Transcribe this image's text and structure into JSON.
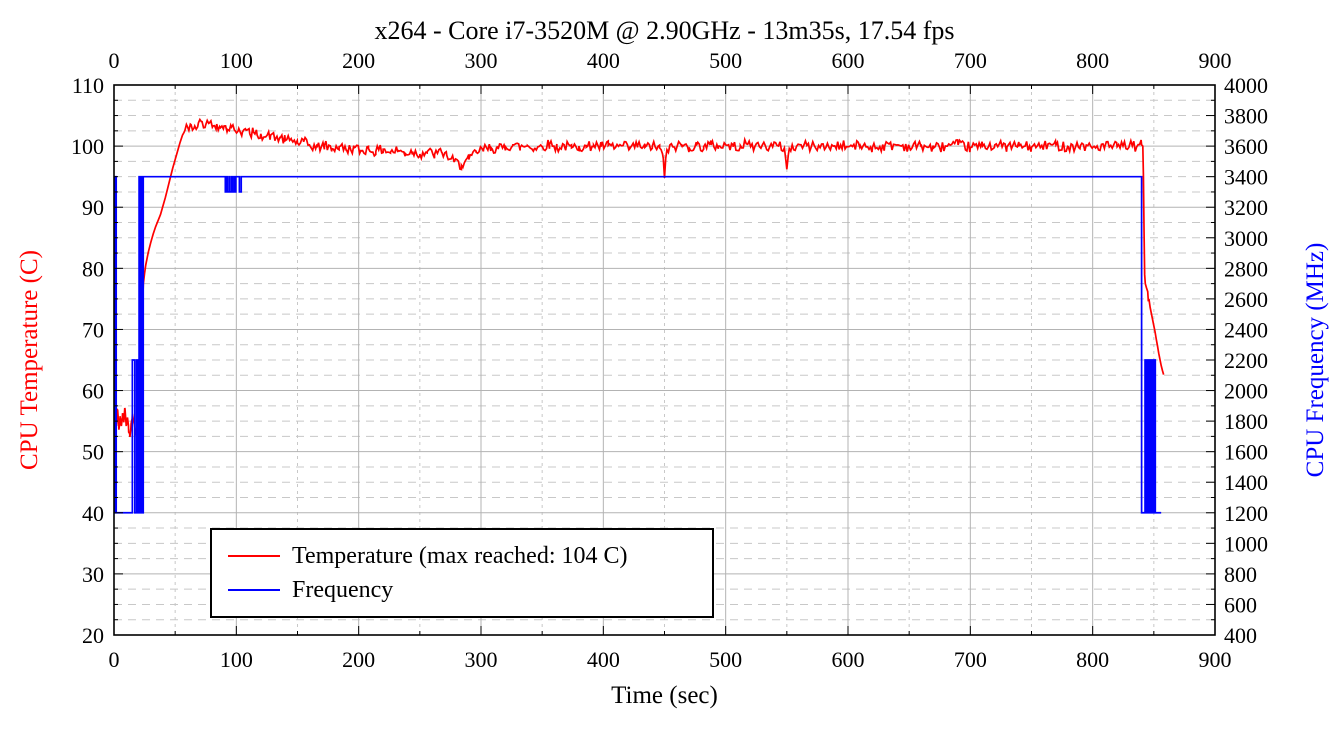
{
  "page": {
    "background": "#ffffff"
  },
  "chart_data": {
    "type": "line",
    "title": "x264 - Core i7-3520M @ 2.90GHz - 13m35s, 17.54 fps",
    "xlabel": "Time (sec)",
    "grid": {
      "major_color": "#b3b3b3",
      "minor_color": "#c8c8c8",
      "minor_dashed": true,
      "legend_position": "bottom-left-inside"
    },
    "x_axis": {
      "min": 0,
      "max": 900,
      "major_tick": 100,
      "minor_tick": 50,
      "mirrored_top": true,
      "tick_labels": [
        0,
        100,
        200,
        300,
        400,
        500,
        600,
        700,
        800,
        900
      ]
    },
    "y_left": {
      "label": "CPU Temperature (C)",
      "color": "#ff0000",
      "min": 20,
      "max": 110,
      "major_tick": 10,
      "minor_tick": 2.5,
      "tick_labels": [
        20,
        30,
        40,
        50,
        60,
        70,
        80,
        90,
        100,
        110
      ]
    },
    "y_right": {
      "label": "CPU Frequency (MHz)",
      "color": "#0000ff",
      "min": 400,
      "max": 4000,
      "label_tick": 200,
      "minor_tick": 100,
      "tick_labels": [
        400,
        600,
        800,
        1000,
        1200,
        1400,
        1600,
        1800,
        2000,
        2200,
        2400,
        2600,
        2800,
        3000,
        3200,
        3400,
        3600,
        3800,
        4000
      ]
    },
    "legend": {
      "entries": [
        {
          "label": "Temperature (max reached: 104 C)",
          "color": "#ff0000",
          "series": "temperature"
        },
        {
          "label": "Frequency",
          "color": "#0000ff",
          "series": "frequency"
        }
      ]
    },
    "series": [
      {
        "name": "temperature",
        "axis": "left",
        "color": "#ff0000",
        "max_reached": 104,
        "jitter": [
          {
            "from": 0,
            "to": 19.5,
            "amplitude": 0.8,
            "step": 0.8
          },
          {
            "from": 56,
            "to": 840,
            "amplitude": 0.85,
            "step": 1.2
          }
        ],
        "points": [
          [
            0,
            55.5
          ],
          [
            1,
            56.5
          ],
          [
            2,
            54.2
          ],
          [
            3,
            56.8
          ],
          [
            4,
            53.6
          ],
          [
            5,
            55.8
          ],
          [
            6,
            54.2
          ],
          [
            7,
            56.3
          ],
          [
            8,
            54.8
          ],
          [
            9,
            57
          ],
          [
            10,
            54.2
          ],
          [
            11,
            55.6
          ],
          [
            12,
            53.2
          ],
          [
            13,
            52.4
          ],
          [
            14,
            54.6
          ],
          [
            15,
            56.2
          ],
          [
            16,
            55
          ],
          [
            17,
            54
          ],
          [
            18,
            52.8
          ],
          [
            19,
            53.6
          ],
          [
            20,
            54.5
          ],
          [
            21,
            58.5
          ],
          [
            22,
            65
          ],
          [
            23,
            72
          ],
          [
            24,
            77.5
          ],
          [
            25,
            79.2
          ],
          [
            26,
            80.6
          ],
          [
            27,
            81.6
          ],
          [
            28,
            82.6
          ],
          [
            30,
            84.2
          ],
          [
            32,
            85.6
          ],
          [
            34,
            86.8
          ],
          [
            36,
            87.8
          ],
          [
            38,
            88.8
          ],
          [
            40,
            90.2
          ],
          [
            42,
            91.6
          ],
          [
            44,
            93.2
          ],
          [
            46,
            94.8
          ],
          [
            48,
            96.4
          ],
          [
            50,
            97.8
          ],
          [
            52,
            99.2
          ],
          [
            54,
            100.6
          ],
          [
            56,
            101.8
          ],
          [
            58,
            102.6
          ],
          [
            60,
            103.2
          ],
          [
            63,
            103.5
          ],
          [
            66,
            103.3
          ],
          [
            69,
            103.8
          ],
          [
            72,
            104
          ],
          [
            75,
            103.5
          ],
          [
            78,
            103.8
          ],
          [
            81,
            103.3
          ],
          [
            84,
            103.6
          ],
          [
            87,
            103
          ],
          [
            90,
            103.3
          ],
          [
            93,
            102.7
          ],
          [
            96,
            103.1
          ],
          [
            99,
            102.5
          ],
          [
            102,
            102.9
          ],
          [
            105,
            102.3
          ],
          [
            108,
            102.6
          ],
          [
            111,
            102
          ],
          [
            114,
            102.3
          ],
          [
            117,
            101.8
          ],
          [
            120,
            102
          ],
          [
            124,
            101.5
          ],
          [
            128,
            101.8
          ],
          [
            132,
            101.2
          ],
          [
            136,
            101.4
          ],
          [
            140,
            100.9
          ],
          [
            145,
            101.1
          ],
          [
            150,
            100.5
          ],
          [
            155,
            100.7
          ],
          [
            160,
            100.1
          ],
          [
            166,
            99.8
          ],
          [
            172,
            100.1
          ],
          [
            178,
            99.6
          ],
          [
            184,
            99.9
          ],
          [
            190,
            99.4
          ],
          [
            196,
            99.7
          ],
          [
            202,
            99.2
          ],
          [
            208,
            99.6
          ],
          [
            214,
            99.1
          ],
          [
            220,
            99.5
          ],
          [
            226,
            99
          ],
          [
            232,
            99.3
          ],
          [
            238,
            98.8
          ],
          [
            244,
            99.1
          ],
          [
            250,
            98.7
          ],
          [
            256,
            99.1
          ],
          [
            262,
            98.6
          ],
          [
            268,
            99
          ],
          [
            272,
            98.5
          ],
          [
            278,
            97.4
          ],
          [
            284,
            96.9
          ],
          [
            290,
            97.8
          ],
          [
            296,
            99
          ],
          [
            302,
            99.4
          ],
          [
            308,
            99.8
          ],
          [
            314,
            99.5
          ],
          [
            320,
            99.9
          ],
          [
            326,
            100.2
          ],
          [
            332,
            99.8
          ],
          [
            338,
            100.1
          ],
          [
            344,
            99.7
          ],
          [
            350,
            100
          ],
          [
            356,
            100.3
          ],
          [
            362,
            99.8
          ],
          [
            368,
            100.1
          ],
          [
            374,
            99.7
          ],
          [
            380,
            100
          ],
          [
            386,
            99.8
          ],
          [
            392,
            100.2
          ],
          [
            398,
            99.9
          ],
          [
            404,
            100.1
          ],
          [
            410,
            99.8
          ],
          [
            416,
            100
          ],
          [
            422,
            99.7
          ],
          [
            428,
            100.1
          ],
          [
            434,
            99.8
          ],
          [
            440,
            100
          ],
          [
            446,
            99.7
          ],
          [
            449,
            98
          ],
          [
            450,
            94.8
          ],
          [
            451,
            98
          ],
          [
            452,
            99.4
          ],
          [
            458,
            99.9
          ],
          [
            464,
            100.2
          ],
          [
            470,
            99.8
          ],
          [
            476,
            100.1
          ],
          [
            482,
            99.9
          ],
          [
            488,
            100.2
          ],
          [
            494,
            100
          ],
          [
            500,
            100.2
          ],
          [
            506,
            99.9
          ],
          [
            512,
            100.1
          ],
          [
            518,
            100.3
          ],
          [
            524,
            100
          ],
          [
            530,
            100.2
          ],
          [
            536,
            99.9
          ],
          [
            542,
            100.1
          ],
          [
            548,
            99.7
          ],
          [
            550,
            96.2
          ],
          [
            552,
            99.6
          ],
          [
            558,
            100
          ],
          [
            564,
            100.2
          ],
          [
            570,
            99.9
          ],
          [
            576,
            100.1
          ],
          [
            582,
            99.8
          ],
          [
            588,
            100
          ],
          [
            594,
            100.2
          ],
          [
            600,
            99.9
          ],
          [
            610,
            100.1
          ],
          [
            620,
            99.8
          ],
          [
            630,
            100
          ],
          [
            640,
            100.2
          ],
          [
            650,
            99.9
          ],
          [
            660,
            100.1
          ],
          [
            670,
            99.7
          ],
          [
            680,
            100
          ],
          [
            690,
            100.2
          ],
          [
            700,
            99.8
          ],
          [
            710,
            100
          ],
          [
            720,
            100.2
          ],
          [
            730,
            99.9
          ],
          [
            740,
            100.1
          ],
          [
            750,
            99.8
          ],
          [
            760,
            100
          ],
          [
            770,
            100.2
          ],
          [
            780,
            99.9
          ],
          [
            790,
            100.1
          ],
          [
            800,
            99.8
          ],
          [
            810,
            100
          ],
          [
            820,
            99.9
          ],
          [
            830,
            100.1
          ],
          [
            836,
            99.9
          ],
          [
            840,
            100.2
          ],
          [
            841,
            100
          ],
          [
            841.5,
            95
          ],
          [
            842,
            86
          ],
          [
            842.5,
            79
          ],
          [
            843,
            77.5
          ],
          [
            844,
            76.8
          ],
          [
            845,
            76.2
          ],
          [
            845.5,
            74.6
          ],
          [
            846,
            75
          ],
          [
            847,
            73.6
          ],
          [
            848,
            72.6
          ],
          [
            849,
            71.6
          ],
          [
            850,
            70.6
          ],
          [
            851,
            69.6
          ],
          [
            852,
            68.4
          ],
          [
            853,
            67.3
          ],
          [
            854,
            66.1
          ],
          [
            855,
            65.1
          ],
          [
            856,
            64.1
          ],
          [
            857,
            63.3
          ],
          [
            858,
            62.6
          ]
        ]
      },
      {
        "name": "frequency",
        "axis": "right",
        "color": "#0000ff",
        "points": [
          [
            0,
            3400
          ],
          [
            0.6,
            3400
          ],
          [
            0.6,
            1200
          ],
          [
            1.2,
            1200
          ],
          [
            1.2,
            3400
          ],
          [
            1.8,
            3400
          ],
          [
            1.8,
            1200
          ],
          [
            15,
            1200
          ],
          [
            15,
            2200
          ],
          [
            17,
            2200
          ],
          [
            17,
            1200
          ],
          [
            18.5,
            1200
          ],
          [
            18.5,
            2200
          ],
          [
            19.5,
            2200
          ],
          [
            19.5,
            1200
          ],
          [
            20.5,
            1200
          ],
          [
            20.5,
            3400
          ],
          [
            21.5,
            3400
          ],
          [
            21.5,
            1200
          ],
          [
            22.3,
            1200
          ],
          [
            22.3,
            3400
          ],
          [
            23.1,
            3400
          ],
          [
            23.1,
            1200
          ],
          [
            23.9,
            1200
          ],
          [
            23.9,
            3400
          ],
          [
            91,
            3400
          ],
          [
            91,
            3300
          ],
          [
            92,
            3300
          ],
          [
            92,
            3400
          ],
          [
            92.5,
            3400
          ],
          [
            92.5,
            3300
          ],
          [
            94,
            3300
          ],
          [
            94,
            3400
          ],
          [
            94.5,
            3400
          ],
          [
            94.5,
            3300
          ],
          [
            96,
            3300
          ],
          [
            96,
            3400
          ],
          [
            96.6,
            3400
          ],
          [
            96.6,
            3300
          ],
          [
            98,
            3300
          ],
          [
            98,
            3400
          ],
          [
            98.6,
            3400
          ],
          [
            98.6,
            3300
          ],
          [
            99.6,
            3300
          ],
          [
            99.6,
            3400
          ],
          [
            102.5,
            3400
          ],
          [
            102.5,
            3300
          ],
          [
            104,
            3300
          ],
          [
            104,
            3400
          ],
          [
            840,
            3400
          ],
          [
            840,
            1200
          ],
          [
            842.8,
            1200
          ],
          [
            842.8,
            2200
          ],
          [
            843.2,
            2200
          ],
          [
            843.2,
            1200
          ],
          [
            843.6,
            1200
          ],
          [
            843.6,
            2200
          ],
          [
            844,
            2200
          ],
          [
            844,
            1200
          ],
          [
            844.4,
            1200
          ],
          [
            844.4,
            2200
          ],
          [
            844.8,
            2200
          ],
          [
            844.8,
            1200
          ],
          [
            845.2,
            1200
          ],
          [
            845.2,
            2200
          ],
          [
            845.6,
            2200
          ],
          [
            845.6,
            1200
          ],
          [
            846,
            1200
          ],
          [
            846,
            2200
          ],
          [
            846.4,
            2200
          ],
          [
            846.4,
            1200
          ],
          [
            846.8,
            1200
          ],
          [
            846.8,
            2200
          ],
          [
            847.2,
            2200
          ],
          [
            847.2,
            1200
          ],
          [
            847.6,
            1200
          ],
          [
            847.6,
            2200
          ],
          [
            848,
            2200
          ],
          [
            848,
            1200
          ],
          [
            848.4,
            1200
          ],
          [
            848.4,
            2200
          ],
          [
            848.8,
            2200
          ],
          [
            848.8,
            1200
          ],
          [
            849.2,
            1200
          ],
          [
            849.2,
            2200
          ],
          [
            849.6,
            2200
          ],
          [
            849.6,
            1200
          ],
          [
            850,
            1200
          ],
          [
            850,
            2200
          ],
          [
            850.4,
            2200
          ],
          [
            850.4,
            1200
          ],
          [
            850.8,
            1200
          ],
          [
            850.8,
            2200
          ],
          [
            851.2,
            2200
          ],
          [
            851.2,
            1200
          ],
          [
            856,
            1200
          ]
        ]
      }
    ]
  }
}
